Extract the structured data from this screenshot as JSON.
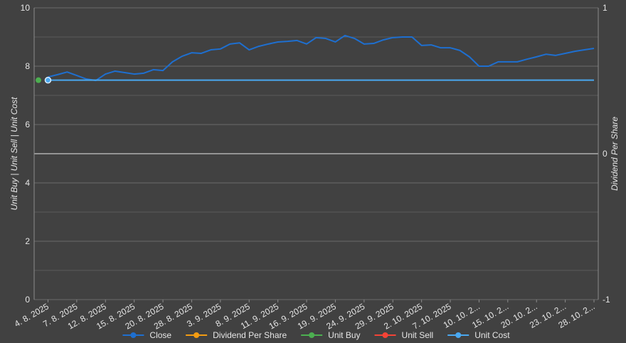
{
  "chart_data": {
    "type": "line",
    "y_label": "Unit Buy | Unit Sell | Unit Cost",
    "y2_label": "Dividend Per Share",
    "categories": [
      null,
      "4. 8. 2025",
      null,
      null,
      "7. 8. 2025",
      null,
      null,
      "12. 8. 2025",
      null,
      null,
      "15. 8. 2025",
      null,
      null,
      "20. 8. 2025",
      null,
      null,
      "28. 8. 2025",
      null,
      null,
      "3. 9. 2025",
      null,
      null,
      "8. 9. 2025",
      null,
      null,
      "11. 9. 2025",
      null,
      null,
      "16. 9. 2025",
      null,
      null,
      "19. 9. 2025",
      null,
      null,
      "24. 9. 2025",
      null,
      null,
      "29. 9. 2025",
      null,
      null,
      "2. 10. 2025",
      null,
      null,
      "7. 10. 2025",
      null,
      null,
      "10. 10. 2...",
      null,
      null,
      "15. 10. 2...",
      null,
      null,
      "20. 10. 2...",
      null,
      null,
      "23. 10. 2...",
      null,
      null,
      "28. 10. 2..."
    ],
    "ylim": [
      0,
      10
    ],
    "yticks": [
      0,
      2,
      4,
      6,
      8,
      10
    ],
    "y_minor_ticks": [
      1,
      3,
      5,
      7,
      9
    ],
    "y2lim": [
      -1,
      1
    ],
    "y2ticks": [
      -1,
      0,
      1
    ],
    "grid": true,
    "legend": "bottom",
    "series": [
      {
        "name": "Close",
        "color": "#1e6fd0",
        "marker": "none",
        "values": [
          null,
          7.63,
          7.71,
          7.8,
          7.68,
          7.56,
          7.51,
          7.73,
          7.83,
          7.78,
          7.73,
          7.76,
          7.88,
          7.85,
          8.15,
          8.34,
          8.46,
          8.44,
          8.56,
          8.59,
          8.76,
          8.8,
          8.56,
          8.68,
          8.76,
          8.83,
          8.85,
          8.88,
          8.76,
          8.98,
          8.95,
          8.83,
          9.05,
          8.95,
          8.76,
          8.78,
          8.9,
          8.98,
          9.0,
          9.0,
          8.71,
          8.73,
          8.63,
          8.63,
          8.54,
          8.32,
          8.0,
          8.0,
          8.15,
          8.15,
          8.15,
          8.24,
          8.32,
          8.41,
          8.37,
          8.44,
          8.51,
          8.56,
          8.61
        ]
      },
      {
        "name": "Dividend Per Share",
        "color": "#f39c12",
        "axis": "y2",
        "marker": "all",
        "values": [
          null,
          null,
          null,
          null,
          null,
          null,
          null,
          null,
          null,
          null,
          null,
          null,
          null,
          null,
          null,
          null,
          null,
          null,
          null,
          null,
          null,
          null,
          null,
          null,
          null,
          null,
          null,
          null,
          null,
          null,
          null,
          null,
          null,
          null,
          null,
          null,
          null,
          null,
          null,
          null,
          null,
          null,
          null,
          null,
          null,
          null,
          null,
          null,
          null,
          null,
          null,
          null,
          null,
          null,
          null,
          null,
          null,
          null,
          null
        ]
      },
      {
        "name": "Unit Buy",
        "color": "#4caf50",
        "marker": "all",
        "values": [
          7.52,
          null,
          null,
          null,
          null,
          null,
          null,
          null,
          null,
          null,
          null,
          null,
          null,
          null,
          null,
          null,
          null,
          null,
          null,
          null,
          null,
          null,
          null,
          null,
          null,
          null,
          null,
          null,
          null,
          null,
          null,
          null,
          null,
          null,
          null,
          null,
          null,
          null,
          null,
          null,
          null,
          null,
          null,
          null,
          null,
          null,
          null,
          null,
          null,
          null,
          null,
          null,
          null,
          null,
          null,
          null,
          null,
          null,
          null
        ]
      },
      {
        "name": "Unit Sell",
        "color": "#f44336",
        "marker": "all",
        "values": [
          null,
          null,
          null,
          null,
          null,
          null,
          null,
          null,
          null,
          null,
          null,
          null,
          null,
          null,
          null,
          null,
          null,
          null,
          null,
          null,
          null,
          null,
          null,
          null,
          null,
          null,
          null,
          null,
          null,
          null,
          null,
          null,
          null,
          null,
          null,
          null,
          null,
          null,
          null,
          null,
          null,
          null,
          null,
          null,
          null,
          null,
          null,
          null,
          null,
          null,
          null,
          null,
          null,
          null,
          null,
          null,
          null,
          null,
          null
        ]
      },
      {
        "name": "Unit Cost",
        "color": "#4aa8f0",
        "marker": "start",
        "values": [
          null,
          7.52,
          7.52,
          7.52,
          7.52,
          7.52,
          7.52,
          7.52,
          7.52,
          7.52,
          7.52,
          7.52,
          7.52,
          7.52,
          7.52,
          7.52,
          7.52,
          7.52,
          7.52,
          7.52,
          7.52,
          7.52,
          7.52,
          7.52,
          7.52,
          7.52,
          7.52,
          7.52,
          7.52,
          7.52,
          7.52,
          7.52,
          7.52,
          7.52,
          7.52,
          7.52,
          7.52,
          7.52,
          7.52,
          7.52,
          7.52,
          7.52,
          7.52,
          7.52,
          7.52,
          7.52,
          7.52,
          7.52,
          7.52,
          7.52,
          7.52,
          7.52,
          7.52,
          7.52,
          7.52,
          7.52,
          7.52,
          7.52,
          7.52
        ]
      }
    ]
  }
}
